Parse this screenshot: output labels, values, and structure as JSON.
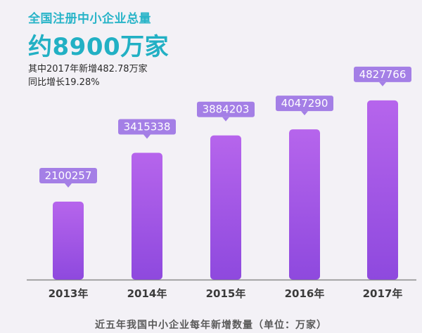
{
  "header": {
    "title": "全国注册中小企业总量",
    "total": "约8900万家",
    "note_line1": "其中2017年新增482.78万家",
    "note_line2": "同比增长19.28%"
  },
  "caption": "近五年我国中小企业每年新增数量（单位：万家）",
  "colors": {
    "bar_top": "#b665ec",
    "bar_bottom": "#8e49de",
    "label_bg": "#a47fe6",
    "label_text": "#ffffff",
    "axis": "#8a8a8a",
    "title": "#28b4c8"
  },
  "chart_data": {
    "type": "bar",
    "categories": [
      "2013年",
      "2014年",
      "2015年",
      "2016年",
      "2017年"
    ],
    "values": [
      2100257,
      3415338,
      3884203,
      4047290,
      4827766
    ],
    "labels": [
      "2100257",
      "3415338",
      "3884203",
      "4047290",
      "4827766"
    ],
    "title": "近五年我国中小企业每年新增数量（单位：万家）",
    "xlabel": "",
    "ylabel": "",
    "ylim": [
      0,
      5450000
    ],
    "grid": false,
    "legend": "none"
  }
}
